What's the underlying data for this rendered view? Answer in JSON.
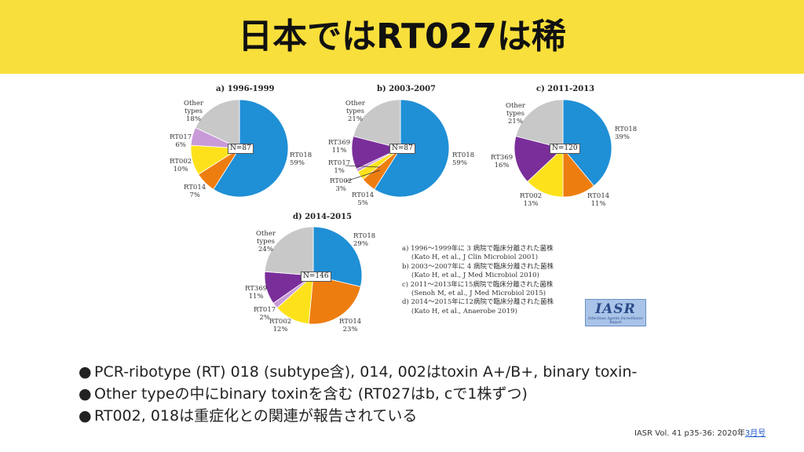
{
  "title": "日本ではRT027は稀",
  "chart_data": [
    {
      "type": "pie",
      "title": "a) 1996-1999",
      "center_label": "N=87",
      "slices": [
        {
          "name": "RT018",
          "pct": "59%",
          "value": 59,
          "color": "#1f8fd6"
        },
        {
          "name": "RT014",
          "pct": "7%",
          "value": 7,
          "color": "#ee7d10"
        },
        {
          "name": "RT002",
          "pct": "10%",
          "value": 10,
          "color": "#fde21b"
        },
        {
          "name": "RT017",
          "pct": "6%",
          "value": 6,
          "color": "#c99ad8"
        },
        {
          "name": "Other types",
          "pct": "18%",
          "value": 18,
          "color": "#c8c8c8"
        }
      ]
    },
    {
      "type": "pie",
      "title": "b) 2003-2007",
      "center_label": "N=87",
      "slices": [
        {
          "name": "RT018",
          "pct": "59%",
          "value": 59,
          "color": "#1f8fd6"
        },
        {
          "name": "RT014",
          "pct": "5%",
          "value": 5,
          "color": "#ee7d10"
        },
        {
          "name": "RT002",
          "pct": "3%",
          "value": 3,
          "color": "#fde21b"
        },
        {
          "name": "RT017",
          "pct": "1%",
          "value": 1,
          "color": "#c99ad8"
        },
        {
          "name": "RT369",
          "pct": "11%",
          "value": 11,
          "color": "#7a2e9a"
        },
        {
          "name": "Other types",
          "pct": "21%",
          "value": 21,
          "color": "#c8c8c8"
        }
      ]
    },
    {
      "type": "pie",
      "title": "c) 2011-2013",
      "center_label": "N=120",
      "slices": [
        {
          "name": "RT018",
          "pct": "39%",
          "value": 39,
          "color": "#1f8fd6"
        },
        {
          "name": "RT014",
          "pct": "11%",
          "value": 11,
          "color": "#ee7d10"
        },
        {
          "name": "RT002",
          "pct": "13%",
          "value": 13,
          "color": "#fde21b"
        },
        {
          "name": "RT369",
          "pct": "16%",
          "value": 16,
          "color": "#7a2e9a"
        },
        {
          "name": "Other types",
          "pct": "21%",
          "value": 21,
          "color": "#c8c8c8"
        }
      ]
    },
    {
      "type": "pie",
      "title": "d) 2014-2015",
      "center_label": "N=146",
      "slices": [
        {
          "name": "RT018",
          "pct": "29%",
          "value": 29,
          "color": "#1f8fd6"
        },
        {
          "name": "RT014",
          "pct": "23%",
          "value": 23,
          "color": "#ee7d10"
        },
        {
          "name": "RT002",
          "pct": "12%",
          "value": 12,
          "color": "#fde21b"
        },
        {
          "name": "RT017",
          "pct": "2%",
          "value": 2,
          "color": "#c99ad8"
        },
        {
          "name": "RT369",
          "pct": "11%",
          "value": 11,
          "color": "#7a2e9a"
        },
        {
          "name": "Other types",
          "pct": "24%",
          "value": 24,
          "color": "#c8c8c8"
        }
      ]
    }
  ],
  "legend": [
    {
      "line1": "a) 1996～1999年に 3 病院で臨床分離された菌株",
      "line2": "(Kato H, et al., J Clin Microbiol 2001)"
    },
    {
      "line1": "b) 2003～2007年に 4 病院で臨床分離された菌株",
      "line2": "(Kato H, et al., J Med Microbiol 2010)"
    },
    {
      "line1": "c) 2011～2013年に15病院で臨床分離された菌株",
      "line2": "(Senoh M, et al., J Med Microbiol 2015)"
    },
    {
      "line1": "d) 2014～2015年に12病院で臨床分離された菌株",
      "line2": "(Kato H, et al., Anaerobe 2019)"
    }
  ],
  "iasr_logo": {
    "text": "IASR",
    "tagline": "Infectious Agents Surveillance Report"
  },
  "bullets": [
    "PCR-ribotype (RT) 018 (subtype含), 014, 002はtoxin A+/B+, binary toxin-",
    "Other typeの中にbinary toxinを含む (RT027はb, cで1株ずつ)",
    "RT002, 018は重症化との関連が報告されている"
  ],
  "footer": {
    "text": "IASR Vol. 41 p35-36: 2020年",
    "link_text": "3月号"
  }
}
